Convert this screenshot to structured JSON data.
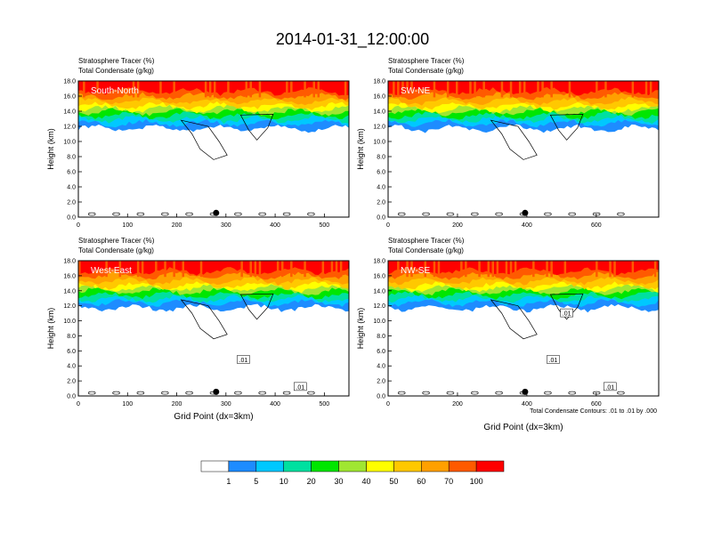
{
  "figure": {
    "title": "2014-01-31_12:00:00",
    "contour_note": "Total Condensate Contours: .01 to .01 by .000",
    "xlabel": "Grid Point (dx=3km)",
    "colorbar_labels": [
      "1",
      "5",
      "10",
      "20",
      "30",
      "40",
      "50",
      "60",
      "70",
      "100"
    ],
    "colorbar_colors": [
      "#ffffff",
      "#1e8cff",
      "#00c8ff",
      "#00e0a0",
      "#00e600",
      "#a0e632",
      "#ffff00",
      "#ffc800",
      "#ffa000",
      "#ff5a00",
      "#ff0000"
    ]
  },
  "chart_data": [
    {
      "type": "heatmap",
      "label": "South-North",
      "title_line1": "Stratosphere Tracer   (%)",
      "title_line2": "Total Condensate   (g/kg)",
      "ylabel": "Height (km)",
      "xlabel": "",
      "xlim": [
        0,
        550
      ],
      "ylim": [
        0,
        18
      ],
      "xticks": [
        "0",
        "100",
        "200",
        "300",
        "400",
        "500"
      ],
      "yticks": [
        "0.0",
        "2.0",
        "4.0",
        "6.0",
        "8.0",
        "10.0",
        "12.0",
        "14.0",
        "16.0",
        "18.0"
      ],
      "marker_x": 280,
      "contour_labels": []
    },
    {
      "type": "heatmap",
      "label": "SW-NE",
      "title_line1": "Stratosphere Tracer   (%)",
      "title_line2": "Total Condensate   (g/kg)",
      "ylabel": "Height (km)",
      "xlabel": "",
      "xlim": [
        0,
        780
      ],
      "ylim": [
        0,
        18
      ],
      "xticks": [
        "0",
        "200",
        "400",
        "600"
      ],
      "yticks": [
        "0.0",
        "2.0",
        "4.0",
        "6.0",
        "8.0",
        "10.0",
        "12.0",
        "14.0",
        "16.0",
        "18.0"
      ],
      "marker_x": 395,
      "contour_labels": []
    },
    {
      "type": "heatmap",
      "label": "West-East",
      "title_line1": "Stratosphere Tracer   (%)",
      "title_line2": "Total Condensate   (g/kg)",
      "ylabel": "Height (km)",
      "xlabel": "Grid Point (dx=3km)",
      "xlim": [
        0,
        550
      ],
      "ylim": [
        0,
        18
      ],
      "xticks": [
        "0",
        "100",
        "200",
        "300",
        "400",
        "500"
      ],
      "yticks": [
        "0.0",
        "2.0",
        "4.0",
        "6.0",
        "8.0",
        "10.0",
        "12.0",
        "14.0",
        "16.0",
        "18.0"
      ],
      "marker_x": 280,
      "contour_labels": [
        ".01",
        ".01"
      ]
    },
    {
      "type": "heatmap",
      "label": "NW-SE",
      "title_line1": "Stratosphere Tracer   (%)",
      "title_line2": "Total Condensate   (g/kg)",
      "ylabel": "Height (km)",
      "xlabel": "Grid Point (dx=3km)",
      "xlim": [
        0,
        780
      ],
      "ylim": [
        0,
        18
      ],
      "xticks": [
        "0",
        "200",
        "400",
        "600"
      ],
      "yticks": [
        "0.0",
        "2.0",
        "4.0",
        "6.0",
        "8.0",
        "10.0",
        "12.0",
        "14.0",
        "16.0",
        "18.0"
      ],
      "marker_x": 395,
      "contour_labels": [
        ".01",
        ".01",
        ".01"
      ]
    }
  ]
}
